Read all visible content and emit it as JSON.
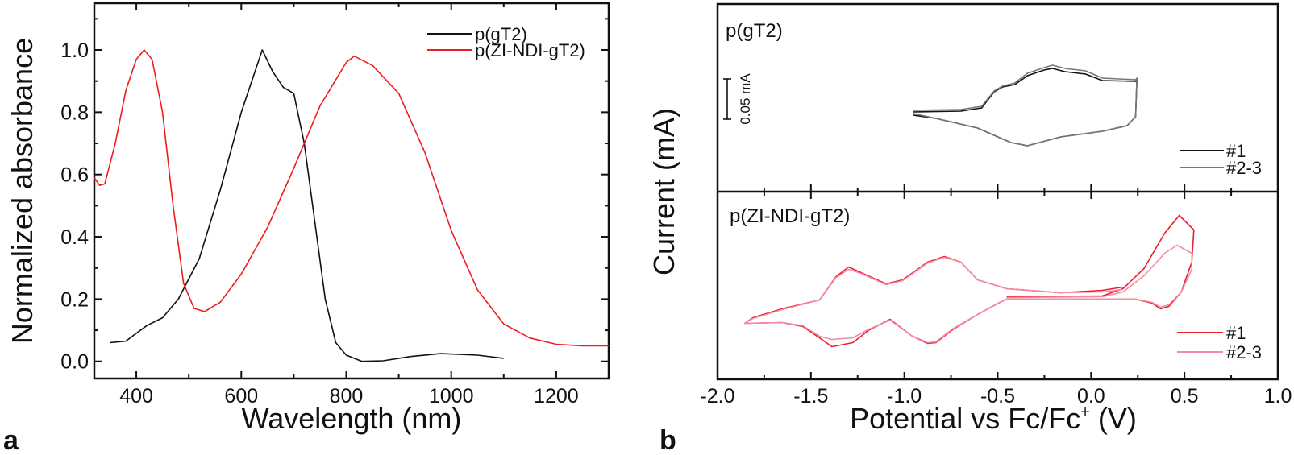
{
  "chart_data": [
    {
      "panel": "a",
      "type": "line",
      "xlabel": "Wavelength (nm)",
      "ylabel": "Normalized absorbance",
      "xlim": [
        320,
        1300
      ],
      "ylim": [
        -0.055,
        1.15
      ],
      "xticks": [
        400,
        600,
        800,
        1000,
        1200
      ],
      "xtick_labels": [
        "400",
        "600",
        "800",
        "1000",
        "1200"
      ],
      "yticks": [
        0.0,
        0.2,
        0.4,
        0.6,
        0.8,
        1.0
      ],
      "ytick_labels": [
        "0.0",
        "0.2",
        "0.4",
        "0.6",
        "0.8",
        "1.0"
      ],
      "grid": false,
      "legend_position": "top-right",
      "series": [
        {
          "name": "p(gT2)",
          "color": "#111111",
          "x": [
            350,
            380,
            400,
            420,
            450,
            480,
            520,
            560,
            600,
            620,
            640,
            660,
            680,
            700,
            720,
            740,
            760,
            780,
            800,
            830,
            870,
            920,
            980,
            1050,
            1100
          ],
          "y": [
            0.06,
            0.065,
            0.09,
            0.115,
            0.14,
            0.2,
            0.33,
            0.55,
            0.8,
            0.9,
            1.0,
            0.93,
            0.88,
            0.86,
            0.7,
            0.45,
            0.2,
            0.06,
            0.02,
            0.0,
            0.002,
            0.015,
            0.025,
            0.02,
            0.01
          ]
        },
        {
          "name": "p(ZI-NDI-gT2)",
          "color": "#ee1c1c",
          "x": [
            320,
            330,
            340,
            360,
            380,
            400,
            415,
            430,
            450,
            470,
            490,
            510,
            530,
            560,
            600,
            650,
            700,
            750,
            800,
            815,
            850,
            900,
            950,
            1000,
            1050,
            1100,
            1150,
            1200,
            1250,
            1300
          ],
          "y": [
            0.59,
            0.565,
            0.57,
            0.7,
            0.87,
            0.97,
            1.0,
            0.97,
            0.8,
            0.5,
            0.25,
            0.17,
            0.16,
            0.19,
            0.28,
            0.43,
            0.62,
            0.82,
            0.96,
            0.98,
            0.95,
            0.86,
            0.67,
            0.42,
            0.23,
            0.12,
            0.075,
            0.055,
            0.05,
            0.05
          ]
        }
      ]
    },
    {
      "panel": "b",
      "type": "line",
      "xlabel_parts": [
        "Potential vs Fc/Fc",
        "+",
        " (V)"
      ],
      "ylabel": "Current (mA)",
      "xlim": [
        -2.0,
        1.0
      ],
      "xticks": [
        -2.0,
        -1.5,
        -1.0,
        -0.5,
        0.0,
        0.5,
        1.0
      ],
      "xtick_labels": [
        "-2.0",
        "-1.5",
        "-1.0",
        "-0.5",
        "0.0",
        "0.5",
        "1.0"
      ],
      "grid": false,
      "subplots": [
        {
          "title": "p(gT2)",
          "ylim": [
            -0.117,
            0.116
          ],
          "scale_bar": {
            "label": "0.05 mA",
            "value": 0.05
          },
          "legend_position": "bottom-right",
          "series": [
            {
              "name": "#1",
              "color": "#111111",
              "x": [
                -0.953,
                -0.697,
                -0.586,
                -0.519,
                -0.474,
                -0.408,
                -0.341,
                -0.252,
                -0.207,
                -0.14,
                -0.029,
                0.06,
                0.238,
                0.245,
                0.245,
                0.238,
                0.193,
                0.06,
                -0.163,
                -0.341,
                -0.43,
                -0.608,
                -0.831,
                -0.953
              ],
              "y": [
                -0.018,
                -0.017,
                -0.013,
                0.007,
                0.013,
                0.016,
                0.027,
                0.034,
                0.036,
                0.032,
                0.029,
                0.021,
                0.02,
                0.023,
                0.02,
                -0.024,
                -0.035,
                -0.042,
                -0.049,
                -0.06,
                -0.056,
                -0.038,
                -0.026,
                -0.022
              ]
            },
            {
              "name": "#2-3",
              "color": "#777777",
              "x": [
                -0.953,
                -0.697,
                -0.586,
                -0.519,
                -0.474,
                -0.408,
                -0.341,
                -0.252,
                -0.207,
                -0.14,
                -0.029,
                0.06,
                0.238,
                0.245,
                0.245,
                0.238,
                0.193,
                0.06,
                -0.163,
                -0.341,
                -0.43,
                -0.608,
                -0.831,
                -0.953
              ],
              "y": [
                -0.016,
                -0.015,
                -0.011,
                0.008,
                0.014,
                0.018,
                0.03,
                0.037,
                0.04,
                0.036,
                0.033,
                0.024,
                0.022,
                0.024,
                0.021,
                -0.024,
                -0.035,
                -0.042,
                -0.049,
                -0.06,
                -0.056,
                -0.038,
                -0.026,
                -0.02
              ]
            }
          ]
        },
        {
          "title": "p(ZI-NDI-gT2)",
          "ylim": [
            -0.1165,
            0.1165
          ],
          "legend_position": "bottom-right",
          "series": [
            {
              "name": "#1",
              "color": "#ee1c2e",
              "x": [
                -0.452,
                0.06,
                0.171,
                0.283,
                0.394,
                0.472,
                0.55,
                0.539,
                0.483,
                0.416,
                0.372,
                0.327,
                0.238,
                -0.163,
                -0.452,
                -0.497,
                -0.608,
                -0.742,
                -0.831,
                -0.875,
                -0.964,
                -1.076,
                -1.187,
                -1.276,
                -1.388,
                -1.454,
                -1.543,
                -1.655,
                -1.855,
                -1.811,
                -1.655,
                -1.454,
                -1.365,
                -1.298,
                -1.232,
                -1.098,
                -1.009,
                -0.875,
                -0.786,
                -0.697,
                -0.608,
                -0.452,
                -0.163,
                0.06,
                0.171
              ],
              "y": [
                -0.014,
                -0.013,
                -0.004,
                0.021,
                0.065,
                0.087,
                0.069,
                0.029,
                -0.008,
                -0.026,
                -0.029,
                -0.022,
                -0.017,
                -0.017,
                -0.017,
                -0.022,
                -0.036,
                -0.055,
                -0.071,
                -0.072,
                -0.062,
                -0.042,
                -0.055,
                -0.071,
                -0.076,
                -0.065,
                -0.051,
                -0.046,
                -0.047,
                -0.04,
                -0.029,
                -0.018,
                0.011,
                0.023,
                0.016,
                0.002,
                0.007,
                0.029,
                0.036,
                0.029,
                0.007,
                -0.004,
                -0.009,
                -0.006,
                -0.002
              ]
            },
            {
              "name": "#2-3",
              "color": "#f48aa6",
              "x": [
                -0.452,
                0.06,
                0.171,
                0.283,
                0.394,
                0.46,
                0.54,
                0.539,
                0.483,
                0.416,
                0.372,
                0.327,
                0.238,
                -0.163,
                -0.452,
                -0.497,
                -0.608,
                -0.742,
                -0.831,
                -0.875,
                -0.964,
                -1.076,
                -1.187,
                -1.276,
                -1.388,
                -1.454,
                -1.543,
                -1.655,
                -1.855,
                -1.811,
                -1.655,
                -1.454,
                -1.365,
                -1.298,
                -1.232,
                -1.098,
                -1.009,
                -0.875,
                -0.786,
                -0.697,
                -0.608,
                -0.452,
                -0.163,
                0.06,
                0.171
              ],
              "y": [
                -0.015,
                -0.014,
                -0.008,
                0.012,
                0.04,
                0.05,
                0.04,
                0.02,
                -0.008,
                -0.024,
                -0.027,
                -0.021,
                -0.017,
                -0.017,
                -0.017,
                -0.022,
                -0.036,
                -0.054,
                -0.07,
                -0.071,
                -0.062,
                -0.043,
                -0.054,
                -0.065,
                -0.067,
                -0.063,
                -0.05,
                -0.046,
                -0.047,
                -0.041,
                -0.03,
                -0.018,
                0.01,
                0.02,
                0.015,
                0.001,
                0.006,
                0.028,
                0.035,
                0.029,
                0.007,
                -0.004,
                -0.009,
                -0.008,
                -0.005
              ]
            }
          ]
        }
      ]
    }
  ],
  "labels": {
    "panel_a": "a",
    "panel_b": "b"
  }
}
